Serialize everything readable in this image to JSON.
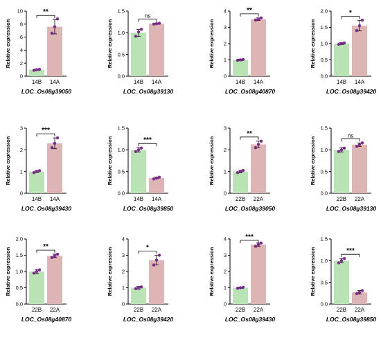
{
  "colors": {
    "bar_left": "#b9e3b5",
    "bar_right": "#ddb5b5",
    "dot": "#7a2a8a",
    "axis": "#000000"
  },
  "chart_data": [
    {
      "type": "bar",
      "title": "",
      "gene": "LOC_Os08g39050",
      "ylabel": "Relative expression",
      "categories": [
        "14B",
        "14A"
      ],
      "values": [
        1.0,
        7.6
      ],
      "points": [
        [
          0.9,
          1.0,
          1.05
        ],
        [
          6.6,
          7.6,
          8.8
        ]
      ],
      "errors": [
        0.08,
        1.1
      ],
      "ylim": [
        0,
        10
      ],
      "yticks": [
        0,
        2,
        4,
        6,
        8,
        10
      ],
      "significance": "**"
    },
    {
      "type": "bar",
      "title": "",
      "gene": "LOC_Os08g39130",
      "ylabel": "Relative expression",
      "categories": [
        "14B",
        "14A"
      ],
      "values": [
        1.0,
        1.21
      ],
      "points": [
        [
          0.92,
          1.02,
          1.08
        ],
        [
          1.2,
          1.21,
          1.22
        ]
      ],
      "errors": [
        0.08,
        0.01
      ],
      "ylim": [
        0,
        1.5
      ],
      "yticks": [
        0.0,
        0.5,
        1.0,
        1.5
      ],
      "significance": "ns"
    },
    {
      "type": "bar",
      "title": "",
      "gene": "LOC_Os08g40870",
      "ylabel": "Relative expression",
      "categories": [
        "14B",
        "14A"
      ],
      "values": [
        1.0,
        3.5
      ],
      "points": [
        [
          0.97,
          1.0,
          1.03
        ],
        [
          3.45,
          3.5,
          3.58
        ]
      ],
      "errors": [
        0.05,
        0.08
      ],
      "ylim": [
        0,
        4
      ],
      "yticks": [
        0,
        1,
        2,
        3,
        4
      ],
      "significance": "**"
    },
    {
      "type": "bar",
      "title": "",
      "gene": "LOC_Os08g39420",
      "ylabel": "Relative expression",
      "categories": [
        "14B",
        "14A"
      ],
      "values": [
        1.0,
        1.55
      ],
      "points": [
        [
          0.98,
          1.0,
          1.02
        ],
        [
          1.4,
          1.55,
          1.72
        ]
      ],
      "errors": [
        0.03,
        0.16
      ],
      "ylim": [
        0,
        2.0
      ],
      "yticks": [
        0.0,
        0.5,
        1.0,
        1.5,
        2.0
      ],
      "significance": "*"
    },
    {
      "type": "bar",
      "title": "",
      "gene": "LOC_Os08g39430",
      "ylabel": "Relative expression",
      "categories": [
        "14B",
        "14A"
      ],
      "values": [
        1.0,
        2.3
      ],
      "points": [
        [
          0.95,
          1.0,
          1.04
        ],
        [
          2.1,
          2.3,
          2.55
        ]
      ],
      "errors": [
        0.05,
        0.25
      ],
      "ylim": [
        0,
        3
      ],
      "yticks": [
        0,
        1,
        2,
        3
      ],
      "significance": "***"
    },
    {
      "type": "bar",
      "title": "",
      "gene": "LOC_Os08g39850",
      "ylabel": "Relative expression",
      "categories": [
        "14B",
        "14A"
      ],
      "values": [
        1.0,
        0.35
      ],
      "points": [
        [
          0.96,
          1.0,
          1.04
        ],
        [
          0.33,
          0.35,
          0.37
        ]
      ],
      "errors": [
        0.05,
        0.02
      ],
      "ylim": [
        0,
        1.5
      ],
      "yticks": [
        0.0,
        0.5,
        1.0,
        1.5
      ],
      "significance": "***"
    },
    {
      "type": "bar",
      "title": "",
      "gene": "LOC_Os08g39050",
      "ylabel": "Relative expression",
      "categories": [
        "22B",
        "22A"
      ],
      "values": [
        1.0,
        2.25
      ],
      "points": [
        [
          0.95,
          1.0,
          1.05
        ],
        [
          2.1,
          2.25,
          2.4
        ]
      ],
      "errors": [
        0.06,
        0.15
      ],
      "ylim": [
        0,
        3
      ],
      "yticks": [
        0,
        1,
        2,
        3
      ],
      "significance": "**"
    },
    {
      "type": "bar",
      "title": "",
      "gene": "LOC_Os08g39130",
      "ylabel": "Relative expression",
      "categories": [
        "22B",
        "22A"
      ],
      "values": [
        1.0,
        1.12
      ],
      "points": [
        [
          0.96,
          1.0,
          1.04
        ],
        [
          1.08,
          1.12,
          1.16
        ]
      ],
      "errors": [
        0.05,
        0.04
      ],
      "ylim": [
        0,
        1.5
      ],
      "yticks": [
        0.0,
        0.5,
        1.0,
        1.5
      ],
      "significance": "ns"
    },
    {
      "type": "bar",
      "title": "",
      "gene": "LOC_Os08g40870",
      "ylabel": "Relative expression",
      "categories": [
        "22B",
        "22A"
      ],
      "values": [
        1.0,
        1.48
      ],
      "points": [
        [
          0.95,
          1.0,
          1.05
        ],
        [
          1.43,
          1.48,
          1.53
        ]
      ],
      "errors": [
        0.06,
        0.05
      ],
      "ylim": [
        0,
        2.0
      ],
      "yticks": [
        0.0,
        0.5,
        1.0,
        1.5,
        2.0
      ],
      "significance": "**"
    },
    {
      "type": "bar",
      "title": "",
      "gene": "LOC_Os08g39420",
      "ylabel": "Relative expression",
      "categories": [
        "22B",
        "22A"
      ],
      "values": [
        1.0,
        2.7
      ],
      "points": [
        [
          0.95,
          1.0,
          1.05
        ],
        [
          2.4,
          2.7,
          3.0
        ]
      ],
      "errors": [
        0.08,
        0.3
      ],
      "ylim": [
        0,
        4
      ],
      "yticks": [
        0,
        1,
        2,
        3,
        4
      ],
      "significance": "*"
    },
    {
      "type": "bar",
      "title": "",
      "gene": "LOC_Os08g39430",
      "ylabel": "Relative expression",
      "categories": [
        "22B",
        "22A"
      ],
      "values": [
        1.0,
        3.65
      ],
      "points": [
        [
          0.97,
          1.0,
          1.03
        ],
        [
          3.55,
          3.65,
          3.75
        ]
      ],
      "errors": [
        0.04,
        0.1
      ],
      "ylim": [
        0,
        4
      ],
      "yticks": [
        0,
        1,
        2,
        3,
        4
      ],
      "significance": "***"
    },
    {
      "type": "bar",
      "title": "",
      "gene": "LOC_Os08g39850",
      "ylabel": "Relative expression",
      "categories": [
        "22B",
        "22A"
      ],
      "values": [
        1.0,
        0.27
      ],
      "points": [
        [
          0.95,
          1.0,
          1.05
        ],
        [
          0.24,
          0.27,
          0.31
        ]
      ],
      "errors": [
        0.05,
        0.04
      ],
      "ylim": [
        0,
        1.5
      ],
      "yticks": [
        0.0,
        0.5,
        1.0,
        1.5
      ],
      "significance": "***"
    }
  ]
}
